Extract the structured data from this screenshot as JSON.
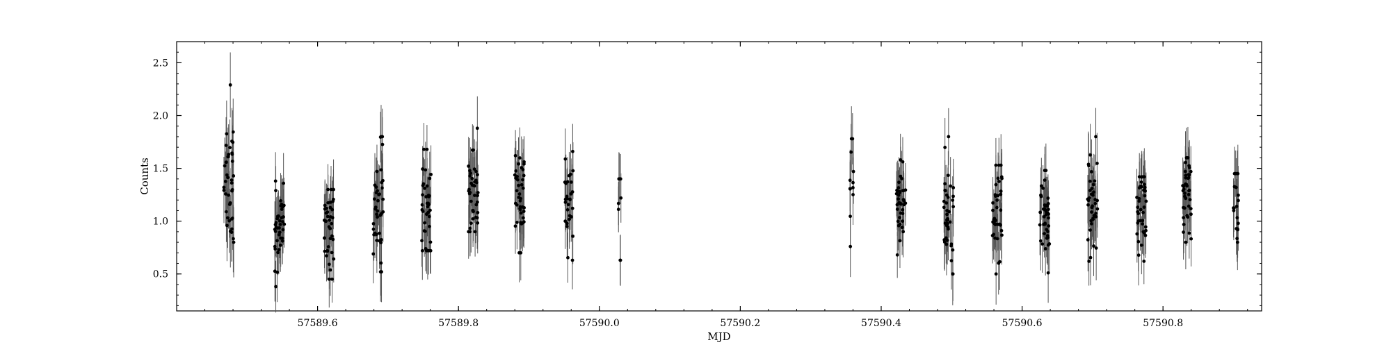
{
  "chart_data": {
    "type": "scatter",
    "title": "",
    "xlabel": "MJD",
    "ylabel": "Counts",
    "xlim": [
      57589.4,
      57590.94
    ],
    "ylim": [
      0.15,
      2.7
    ],
    "xticks": [
      57589.6,
      57589.8,
      57590.0,
      57590.2,
      57590.4,
      57590.6,
      57590.8
    ],
    "xtick_labels": [
      "57589.6",
      "57589.8",
      "57590.0",
      "57590.2",
      "57590.4",
      "57590.6",
      "57590.8"
    ],
    "yticks": [
      0.5,
      1.0,
      1.5,
      2.0,
      2.5
    ],
    "ytick_labels": [
      "0.5",
      "1.0",
      "1.5",
      "2.0",
      "2.5"
    ],
    "grid": false,
    "legend": "none",
    "marker_color": "#000000",
    "errorbar_color": "#555555",
    "series": [
      {
        "marker": "filled-circle",
        "clusters": [
          {
            "x_center": 57589.474,
            "x_width": 0.014,
            "n": 40,
            "y_mean": 1.42,
            "y_spread": 0.33,
            "y_min": 0.8,
            "y_max": 2.29,
            "err": 0.3
          },
          {
            "x_center": 57589.546,
            "x_width": 0.014,
            "n": 40,
            "y_mean": 0.97,
            "y_spread": 0.22,
            "y_min": 0.38,
            "y_max": 1.38,
            "err": 0.25
          },
          {
            "x_center": 57589.616,
            "x_width": 0.014,
            "n": 40,
            "y_mean": 0.92,
            "y_spread": 0.22,
            "y_min": 0.45,
            "y_max": 1.3,
            "err": 0.25
          },
          {
            "x_center": 57589.686,
            "x_width": 0.014,
            "n": 40,
            "y_mean": 1.15,
            "y_spread": 0.3,
            "y_min": 0.52,
            "y_max": 1.8,
            "err": 0.27
          },
          {
            "x_center": 57589.755,
            "x_width": 0.014,
            "n": 40,
            "y_mean": 1.12,
            "y_spread": 0.25,
            "y_min": 0.72,
            "y_max": 1.68,
            "err": 0.25
          },
          {
            "x_center": 57589.821,
            "x_width": 0.014,
            "n": 40,
            "y_mean": 1.34,
            "y_spread": 0.2,
            "y_min": 0.9,
            "y_max": 1.88,
            "err": 0.27
          },
          {
            "x_center": 57589.887,
            "x_width": 0.014,
            "n": 40,
            "y_mean": 1.22,
            "y_spread": 0.22,
            "y_min": 0.7,
            "y_max": 1.62,
            "err": 0.26
          },
          {
            "x_center": 57589.957,
            "x_width": 0.012,
            "n": 30,
            "y_mean": 1.18,
            "y_spread": 0.2,
            "y_min": 0.63,
            "y_max": 1.66,
            "err": 0.26
          },
          {
            "x_center": 57590.029,
            "x_width": 0.004,
            "n": 8,
            "y_mean": 1.05,
            "y_spread": 0.25,
            "y_min": 0.63,
            "y_max": 1.4,
            "err": 0.24
          },
          {
            "x_center": 57590.358,
            "x_width": 0.006,
            "n": 12,
            "y_mean": 1.25,
            "y_spread": 0.25,
            "y_min": 0.76,
            "y_max": 1.78,
            "err": 0.27
          },
          {
            "x_center": 57590.428,
            "x_width": 0.013,
            "n": 40,
            "y_mean": 1.18,
            "y_spread": 0.2,
            "y_min": 0.68,
            "y_max": 1.58,
            "err": 0.25
          },
          {
            "x_center": 57590.496,
            "x_width": 0.014,
            "n": 40,
            "y_mean": 0.98,
            "y_spread": 0.24,
            "y_min": 0.5,
            "y_max": 1.8,
            "err": 0.26
          },
          {
            "x_center": 57590.565,
            "x_width": 0.014,
            "n": 40,
            "y_mean": 1.05,
            "y_spread": 0.24,
            "y_min": 0.5,
            "y_max": 1.53,
            "err": 0.26
          },
          {
            "x_center": 57590.632,
            "x_width": 0.014,
            "n": 40,
            "y_mean": 1.08,
            "y_spread": 0.2,
            "y_min": 0.51,
            "y_max": 1.48,
            "err": 0.25
          },
          {
            "x_center": 57590.7,
            "x_width": 0.014,
            "n": 40,
            "y_mean": 1.18,
            "y_spread": 0.25,
            "y_min": 0.62,
            "y_max": 1.8,
            "err": 0.27
          },
          {
            "x_center": 57590.769,
            "x_width": 0.014,
            "n": 40,
            "y_mean": 1.05,
            "y_spread": 0.22,
            "y_min": 0.62,
            "y_max": 1.42,
            "err": 0.25
          },
          {
            "x_center": 57590.834,
            "x_width": 0.012,
            "n": 40,
            "y_mean": 1.25,
            "y_spread": 0.2,
            "y_min": 0.8,
            "y_max": 1.6,
            "err": 0.26
          },
          {
            "x_center": 57590.903,
            "x_width": 0.008,
            "n": 20,
            "y_mean": 1.15,
            "y_spread": 0.2,
            "y_min": 0.8,
            "y_max": 1.45,
            "err": 0.25
          }
        ]
      }
    ]
  }
}
